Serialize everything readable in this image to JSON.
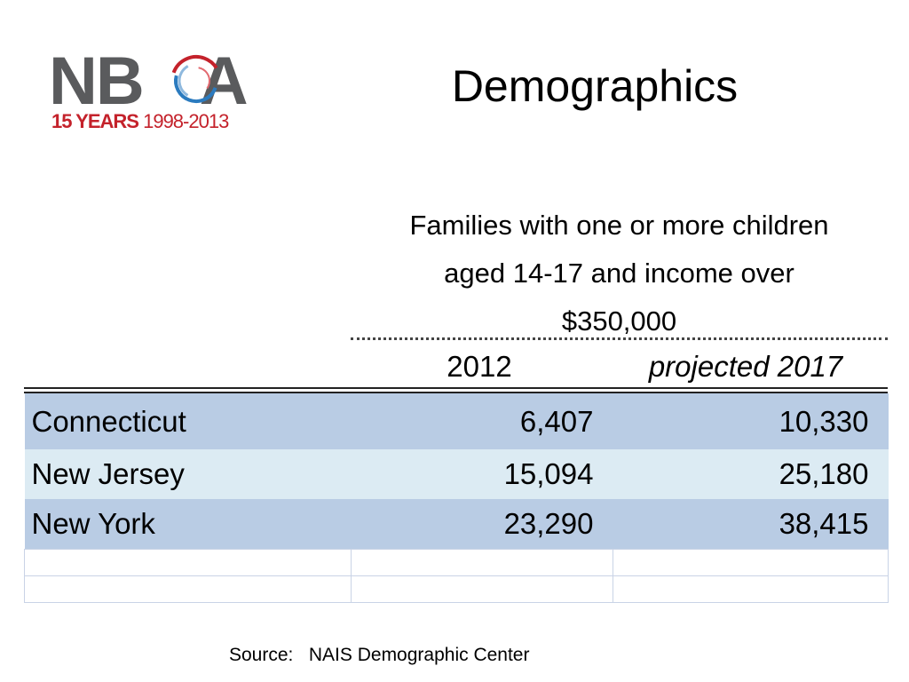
{
  "logo": {
    "wordmark_left": "NB",
    "wordmark_right": "A",
    "sub_bold": "15 YEARS",
    "sub_rest": " 1998-2013"
  },
  "slide": {
    "title": "Demographics",
    "subtitle_lines": [
      "Families with one or more children",
      "aged 14-17 and income over",
      "$350,000"
    ]
  },
  "table": {
    "columns": [
      "2012",
      "projected 2017"
    ],
    "rows": [
      {
        "state": "Connecticut",
        "y2012": "6,407",
        "y2017": "10,330"
      },
      {
        "state": "New Jersey",
        "y2012": "15,094",
        "y2017": "25,180"
      },
      {
        "state": "New York",
        "y2012": "23,290",
        "y2017": "38,415"
      }
    ]
  },
  "source": "Source:   NAIS Demographic Center",
  "colors": {
    "row_dark": "#b9cce4",
    "row_light": "#dcebf3",
    "logo_grey": "#5a5b5d",
    "logo_red": "#c4222b",
    "logo_blue": "#2b7bbf"
  }
}
